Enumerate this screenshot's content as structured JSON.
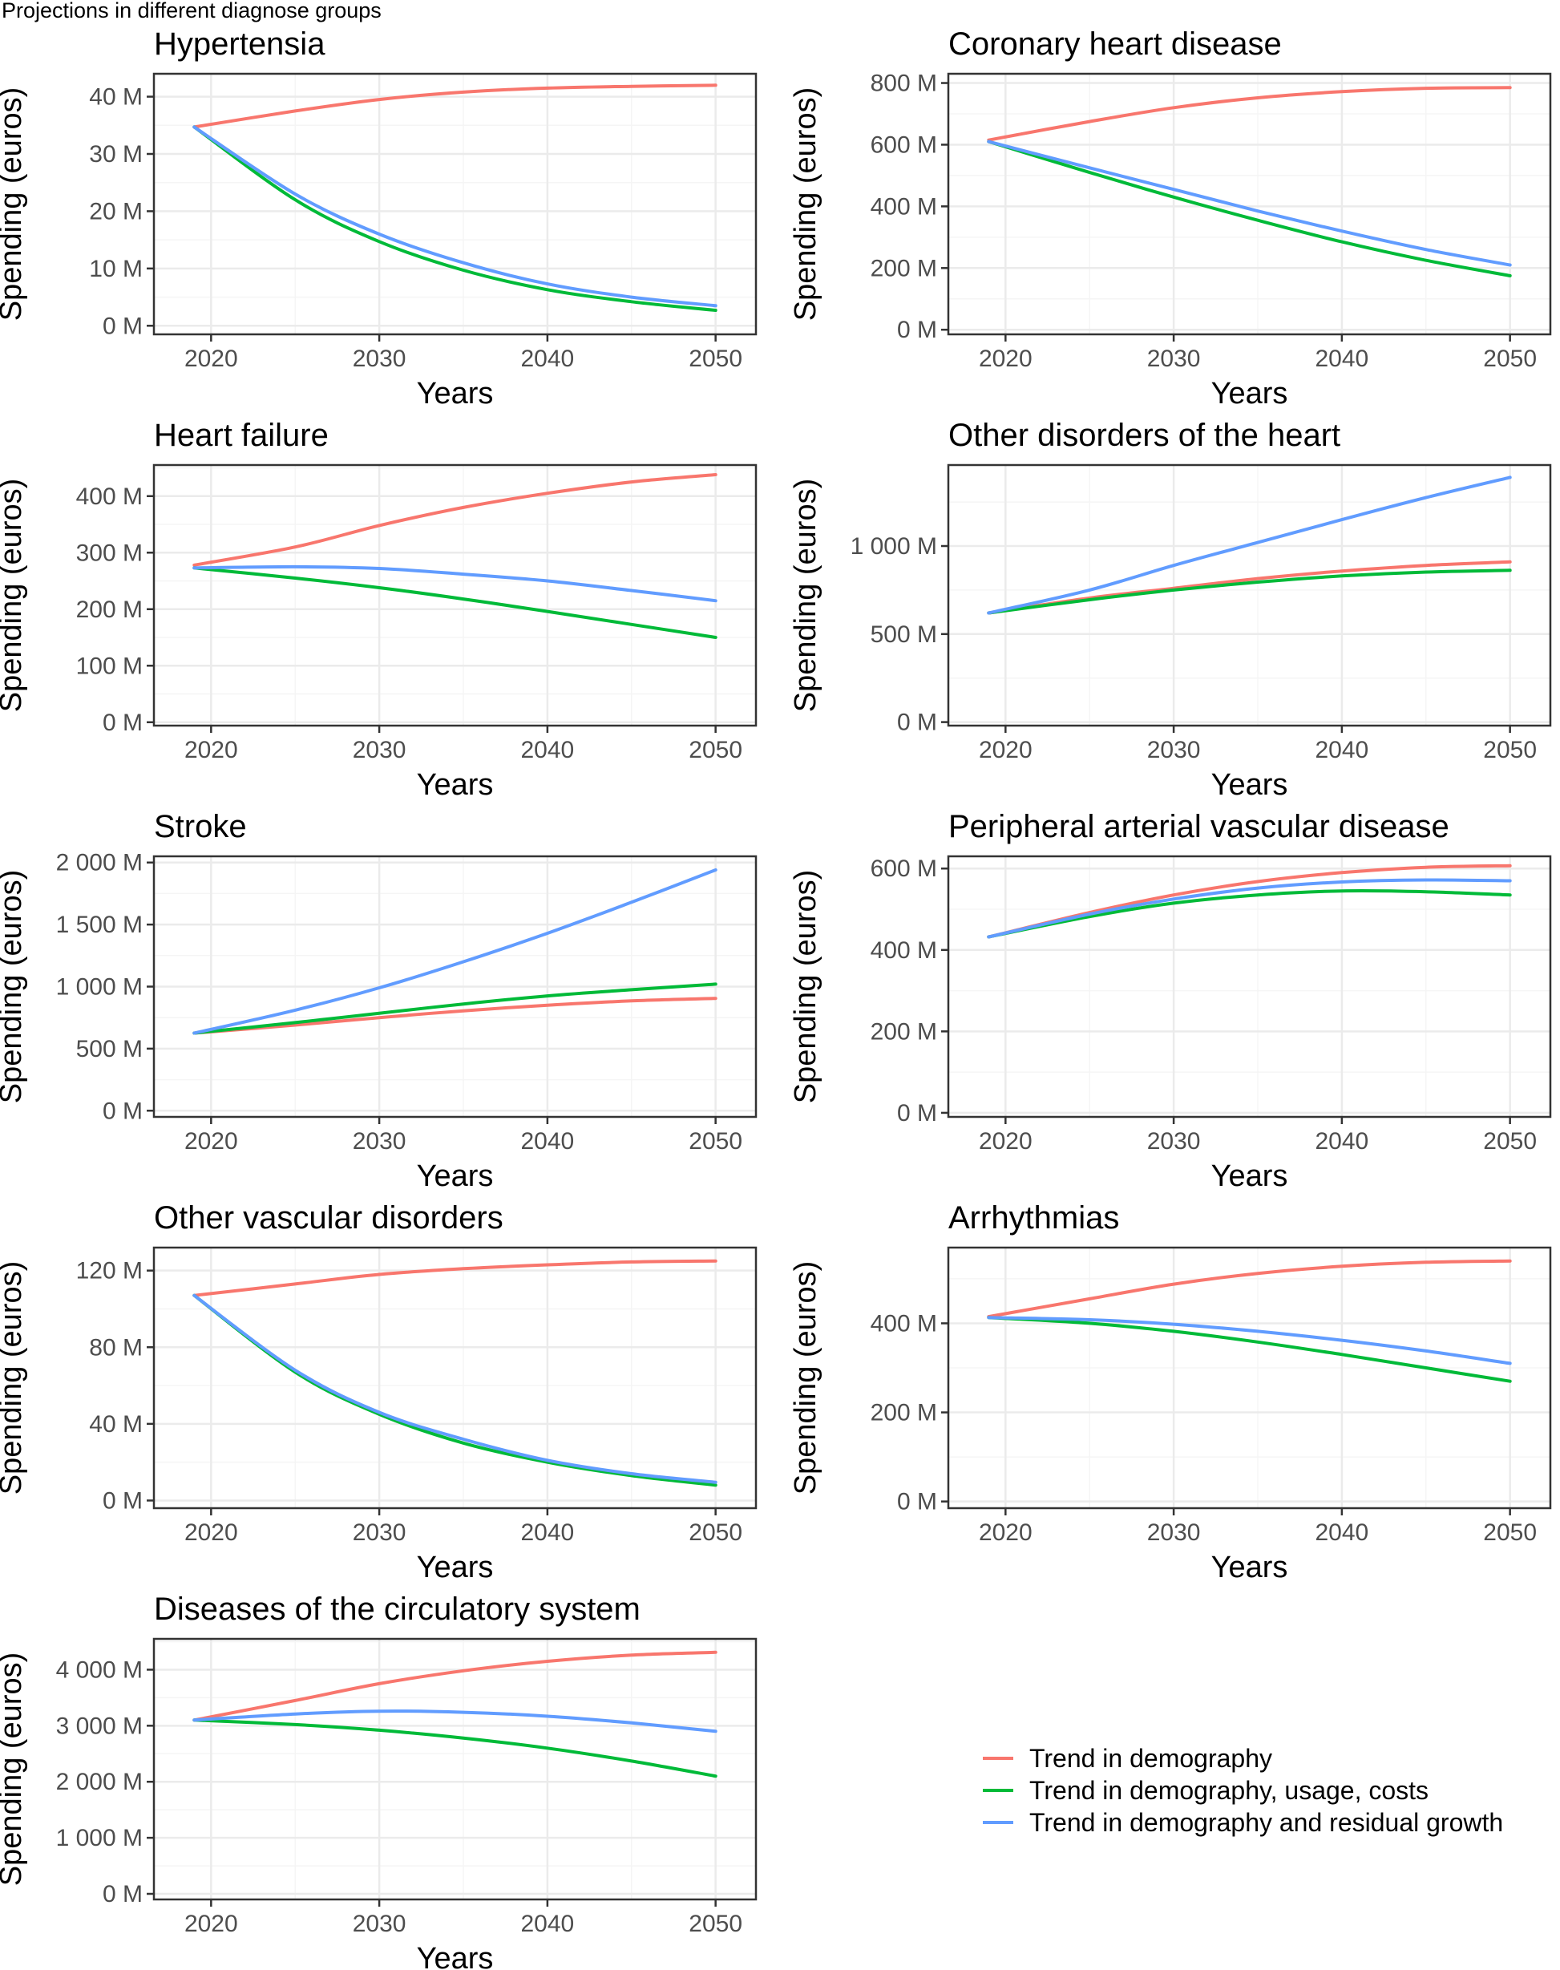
{
  "page_title": "Projections in different diagnose groups",
  "colors": {
    "demography": "#F8766D",
    "demography_usage_costs": "#00BA38",
    "demography_residual": "#619CFF",
    "grid_major": "#ebebeb",
    "grid_minor": "#f5f5f5",
    "panel_border": "#333333",
    "tick_text": "#4d4d4d"
  },
  "legend": {
    "position": "bottom-right",
    "items": [
      {
        "key": "demography",
        "label": "Trend in demography"
      },
      {
        "key": "demography_usage_costs",
        "label": "Trend in demography, usage, costs"
      },
      {
        "key": "demography_residual",
        "label": "Trend in demography and residual growth"
      }
    ]
  },
  "chart_data": [
    {
      "type": "line",
      "title": "Hypertensia",
      "xlabel": "Years",
      "ylabel": "Spending (euros)",
      "xlim": [
        2016.6,
        2052.4
      ],
      "ylim": [
        -1.5,
        44
      ],
      "xticks": [
        2020,
        2030,
        2040,
        2050
      ],
      "xtick_labels": [
        "2020",
        "2030",
        "2040",
        "2050"
      ],
      "yticks": [
        0,
        10,
        20,
        30,
        40
      ],
      "ytick_labels": [
        "0 M",
        "10 M",
        "20 M",
        "30 M",
        "40 M"
      ],
      "x": [
        2019,
        2025,
        2030,
        2035,
        2040,
        2045,
        2050
      ],
      "series": [
        {
          "key": "demography",
          "name": "Trend in demography",
          "values": [
            34.7,
            37.5,
            39.5,
            40.8,
            41.5,
            41.8,
            42.0
          ]
        },
        {
          "key": "demography_usage_costs",
          "name": "Trend in demography, usage, costs",
          "values": [
            34.7,
            22.0,
            14.7,
            9.7,
            6.3,
            4.2,
            2.7
          ]
        },
        {
          "key": "demography_residual",
          "name": "Trend in demography and residual growth",
          "values": [
            34.7,
            23.0,
            16.0,
            11.0,
            7.3,
            5.0,
            3.5
          ]
        }
      ]
    },
    {
      "type": "line",
      "title": "Coronary heart disease",
      "xlabel": "Years",
      "ylabel": "Spending (euros)",
      "xlim": [
        2016.6,
        2052.4
      ],
      "ylim": [
        -15,
        830
      ],
      "xticks": [
        2020,
        2030,
        2040,
        2050
      ],
      "xtick_labels": [
        "2020",
        "2030",
        "2040",
        "2050"
      ],
      "yticks": [
        0,
        200,
        400,
        600,
        800
      ],
      "ytick_labels": [
        "0 M",
        "200 M",
        "400 M",
        "600 M",
        "800 M"
      ],
      "x": [
        2019,
        2025,
        2030,
        2035,
        2040,
        2045,
        2050
      ],
      "series": [
        {
          "key": "demography",
          "name": "Trend in demography",
          "values": [
            615,
            675,
            720,
            752,
            772,
            783,
            785
          ]
        },
        {
          "key": "demography_usage_costs",
          "name": "Trend in demography, usage, costs",
          "values": [
            610,
            510,
            430,
            355,
            285,
            225,
            175
          ]
        },
        {
          "key": "demography_residual",
          "name": "Trend in demography and residual growth",
          "values": [
            610,
            525,
            455,
            385,
            320,
            260,
            210
          ]
        }
      ]
    },
    {
      "type": "line",
      "title": "Heart failure",
      "xlabel": "Years",
      "ylabel": "Spending (euros)",
      "xlim": [
        2016.6,
        2052.4
      ],
      "ylim": [
        -6,
        455
      ],
      "xticks": [
        2020,
        2030,
        2040,
        2050
      ],
      "xtick_labels": [
        "2020",
        "2030",
        "2040",
        "2050"
      ],
      "yticks": [
        0,
        100,
        200,
        300,
        400
      ],
      "ytick_labels": [
        "0 M",
        "100 M",
        "200 M",
        "300 M",
        "400 M"
      ],
      "x": [
        2019,
        2025,
        2030,
        2035,
        2040,
        2045,
        2050
      ],
      "series": [
        {
          "key": "demography",
          "name": "Trend in demography",
          "values": [
            278,
            310,
            348,
            380,
            405,
            425,
            438
          ]
        },
        {
          "key": "demography_usage_costs",
          "name": "Trend in demography, usage, costs",
          "values": [
            273,
            255,
            238,
            218,
            196,
            173,
            150
          ]
        },
        {
          "key": "demography_residual",
          "name": "Trend in demography and residual growth",
          "values": [
            273,
            275,
            272,
            262,
            250,
            233,
            215
          ]
        }
      ]
    },
    {
      "type": "line",
      "title": "Other disorders of the heart",
      "xlabel": "Years",
      "ylabel": "Spending (euros)",
      "xlim": [
        2016.6,
        2052.4
      ],
      "ylim": [
        -20,
        1460
      ],
      "xticks": [
        2020,
        2030,
        2040,
        2050
      ],
      "xtick_labels": [
        "2020",
        "2030",
        "2040",
        "2050"
      ],
      "yticks": [
        0,
        500,
        1000
      ],
      "ytick_labels": [
        "0 M",
        "500 M",
        "1 000 M"
      ],
      "x": [
        2019,
        2025,
        2030,
        2035,
        2040,
        2045,
        2050
      ],
      "series": [
        {
          "key": "demography",
          "name": "Trend in demography",
          "values": [
            620,
            705,
            760,
            815,
            858,
            890,
            910
          ]
        },
        {
          "key": "demography_usage_costs",
          "name": "Trend in demography, usage, costs",
          "values": [
            620,
            695,
            750,
            795,
            830,
            852,
            862
          ]
        },
        {
          "key": "demography_residual",
          "name": "Trend in demography and residual growth",
          "values": [
            620,
            750,
            890,
            1020,
            1150,
            1275,
            1390
          ]
        }
      ]
    },
    {
      "type": "line",
      "title": "Stroke",
      "xlabel": "Years",
      "ylabel": "Spending (euros)",
      "xlim": [
        2016.6,
        2052.4
      ],
      "ylim": [
        -50,
        2050
      ],
      "xticks": [
        2020,
        2030,
        2040,
        2050
      ],
      "xtick_labels": [
        "2020",
        "2030",
        "2040",
        "2050"
      ],
      "yticks": [
        0,
        500,
        1000,
        1500,
        2000
      ],
      "ytick_labels": [
        "0 M",
        "500 M",
        "1 000 M",
        "1 500 M",
        "2 000 M"
      ],
      "x": [
        2019,
        2025,
        2030,
        2035,
        2040,
        2045,
        2050
      ],
      "series": [
        {
          "key": "demography",
          "name": "Trend in demography",
          "values": [
            625,
            690,
            750,
            805,
            850,
            885,
            905
          ]
        },
        {
          "key": "demography_usage_costs",
          "name": "Trend in demography, usage, costs",
          "values": [
            625,
            710,
            785,
            860,
            925,
            975,
            1020
          ]
        },
        {
          "key": "demography_residual",
          "name": "Trend in demography and residual growth",
          "values": [
            625,
            810,
            990,
            1200,
            1430,
            1680,
            1940
          ]
        }
      ]
    },
    {
      "type": "line",
      "title": "Peripheral arterial vascular disease",
      "xlabel": "Years",
      "ylabel": "Spending (euros)",
      "xlim": [
        2016.6,
        2052.4
      ],
      "ylim": [
        -10,
        630
      ],
      "xticks": [
        2020,
        2030,
        2040,
        2050
      ],
      "xtick_labels": [
        "2020",
        "2030",
        "2040",
        "2050"
      ],
      "yticks": [
        0,
        200,
        400,
        600
      ],
      "ytick_labels": [
        "0 M",
        "200 M",
        "400 M",
        "600 M"
      ],
      "x": [
        2019,
        2025,
        2030,
        2035,
        2040,
        2045,
        2050
      ],
      "series": [
        {
          "key": "demography",
          "name": "Trend in demography",
          "values": [
            432,
            492,
            535,
            568,
            590,
            603,
            607
          ]
        },
        {
          "key": "demography_usage_costs",
          "name": "Trend in demography, usage, costs",
          "values": [
            432,
            482,
            515,
            535,
            545,
            543,
            535
          ]
        },
        {
          "key": "demography_residual",
          "name": "Trend in demography and residual growth",
          "values": [
            432,
            488,
            525,
            552,
            567,
            572,
            570
          ]
        }
      ]
    },
    {
      "type": "line",
      "title": "Other vascular disorders",
      "xlabel": "Years",
      "ylabel": "Spending (euros)",
      "xlim": [
        2016.6,
        2052.4
      ],
      "ylim": [
        -4,
        132
      ],
      "xticks": [
        2020,
        2030,
        2040,
        2050
      ],
      "xtick_labels": [
        "2020",
        "2030",
        "2040",
        "2050"
      ],
      "yticks": [
        0,
        40,
        80,
        120
      ],
      "ytick_labels": [
        "0 M",
        "40 M",
        "80 M",
        "120 M"
      ],
      "x": [
        2019,
        2025,
        2030,
        2035,
        2040,
        2045,
        2050
      ],
      "series": [
        {
          "key": "demography",
          "name": "Trend in demography",
          "values": [
            107,
            113,
            118,
            121,
            123,
            124.5,
            125
          ]
        },
        {
          "key": "demography_usage_costs",
          "name": "Trend in demography, usage, costs",
          "values": [
            107,
            67,
            45,
            30,
            20,
            13,
            8
          ]
        },
        {
          "key": "demography_residual",
          "name": "Trend in demography and residual growth",
          "values": [
            107,
            68,
            46,
            32,
            21,
            14,
            9.5
          ]
        }
      ]
    },
    {
      "type": "line",
      "title": "Arrhythmias",
      "xlabel": "Years",
      "ylabel": "Spending (euros)",
      "xlim": [
        2016.6,
        2052.4
      ],
      "ylim": [
        -15,
        570
      ],
      "xticks": [
        2020,
        2030,
        2040,
        2050
      ],
      "xtick_labels": [
        "2020",
        "2030",
        "2040",
        "2050"
      ],
      "yticks": [
        0,
        200,
        400
      ],
      "ytick_labels": [
        "0 M",
        "200 M",
        "400 M"
      ],
      "x": [
        2019,
        2025,
        2030,
        2035,
        2040,
        2045,
        2050
      ],
      "series": [
        {
          "key": "demography",
          "name": "Trend in demography",
          "values": [
            415,
            455,
            488,
            512,
            528,
            537,
            540
          ]
        },
        {
          "key": "demography_usage_costs",
          "name": "Trend in demography, usage, costs",
          "values": [
            413,
            400,
            382,
            358,
            330,
            300,
            270
          ]
        },
        {
          "key": "demography_residual",
          "name": "Trend in demography and residual growth",
          "values": [
            413,
            408,
            398,
            382,
            362,
            338,
            310
          ]
        }
      ]
    },
    {
      "type": "line",
      "title": "Diseases of the circulatory system",
      "xlabel": "Years",
      "ylabel": "Spending (euros)",
      "xlim": [
        2016.6,
        2052.4
      ],
      "ylim": [
        -100,
        4550
      ],
      "xticks": [
        2020,
        2030,
        2040,
        2050
      ],
      "xtick_labels": [
        "2020",
        "2030",
        "2040",
        "2050"
      ],
      "yticks": [
        0,
        1000,
        2000,
        3000,
        4000
      ],
      "ytick_labels": [
        "0 M",
        "1 000 M",
        "2 000 M",
        "3 000 M",
        "4 000 M"
      ],
      "x": [
        2019,
        2025,
        2030,
        2035,
        2040,
        2045,
        2050
      ],
      "series": [
        {
          "key": "demography",
          "name": "Trend in demography",
          "values": [
            3100,
            3450,
            3750,
            3980,
            4150,
            4260,
            4310
          ]
        },
        {
          "key": "demography_usage_costs",
          "name": "Trend in demography, usage, costs",
          "values": [
            3100,
            3020,
            2920,
            2780,
            2600,
            2370,
            2100
          ]
        },
        {
          "key": "demography_residual",
          "name": "Trend in demography and residual growth",
          "values": [
            3100,
            3210,
            3260,
            3240,
            3170,
            3050,
            2900
          ]
        }
      ]
    }
  ]
}
